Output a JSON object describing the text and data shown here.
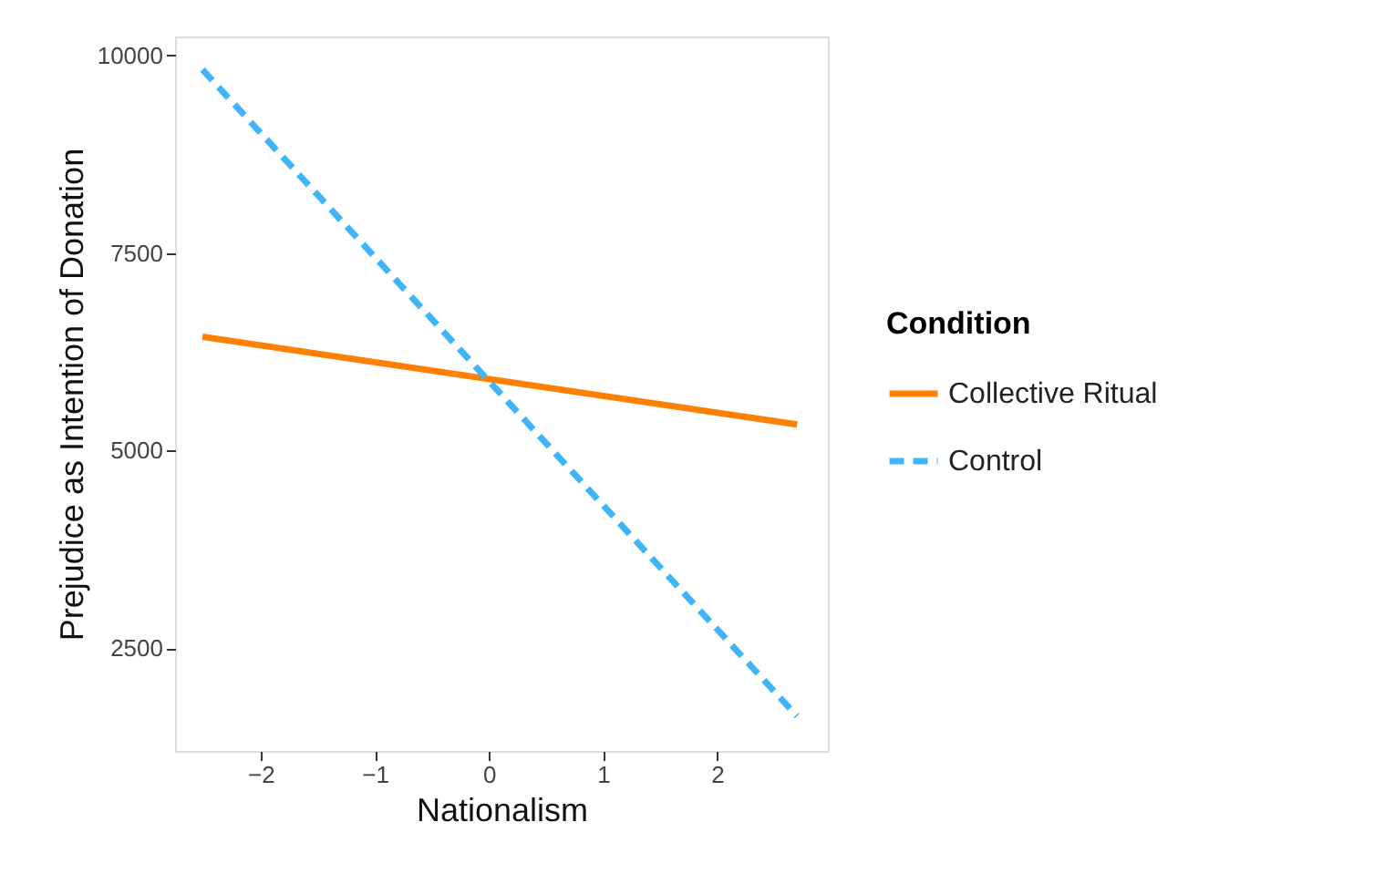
{
  "chart_data": {
    "type": "line",
    "xlabel": "Nationalism",
    "ylabel": "Prejudice as Intention of Donation",
    "legend_title": "Condition",
    "legend": "right",
    "grid": false,
    "xlim": [
      -2.75,
      2.97
    ],
    "xticks": [
      -2,
      -1,
      0,
      1,
      2
    ],
    "ylim": [
      1200,
      10240
    ],
    "yticks": [
      2500,
      5000,
      7500,
      10000
    ],
    "x": [
      -2.51,
      2.7
    ],
    "series": [
      {
        "name": "Collective Ritual",
        "color": "#ff7f00",
        "line_style": "solid",
        "values": [
          6440,
          5330
        ]
      },
      {
        "name": "Control",
        "color": "#3fb5f8",
        "line_style": "dashed",
        "values": [
          9820,
          1640
        ]
      }
    ]
  }
}
